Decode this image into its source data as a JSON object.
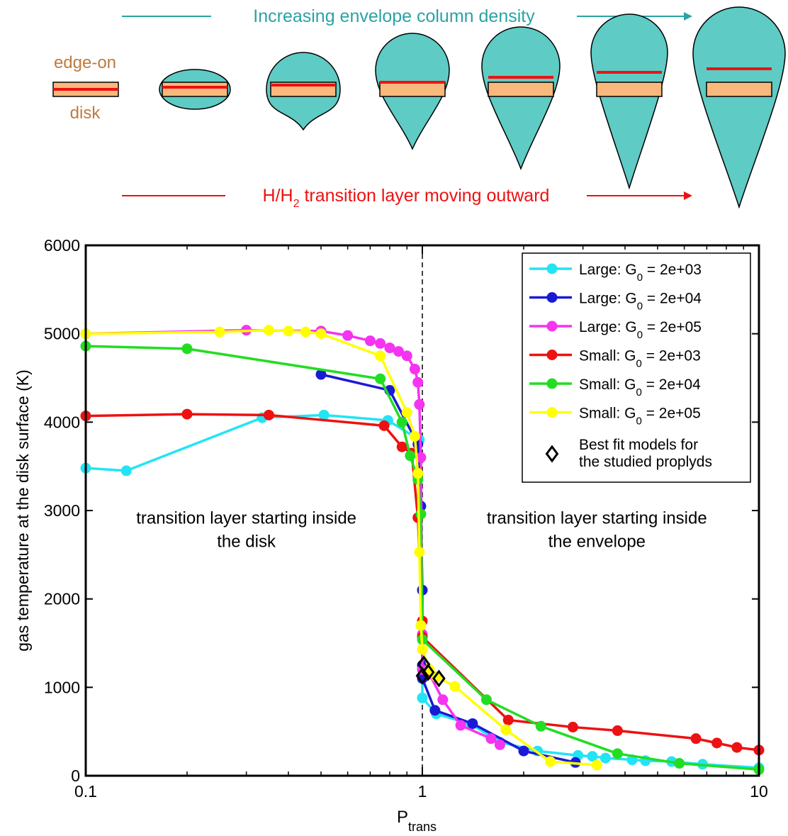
{
  "diagram": {
    "top_arrow_label": "Increasing envelope column density",
    "disk_label": [
      "edge-on",
      "disk"
    ],
    "bottom_arrow_label": [
      "H/H",
      "2",
      " transition layer moving  outward"
    ]
  },
  "chart_data": {
    "type": "line",
    "xlabel": [
      "P",
      "trans"
    ],
    "ylabel": "gas temperature at the disk surface (K)",
    "xscale": "log",
    "xlim": [
      0.1,
      10
    ],
    "xticks": [
      0.1,
      1,
      10
    ],
    "ylim": [
      0,
      6000
    ],
    "yticks": [
      0,
      1000,
      2000,
      3000,
      4000,
      5000,
      6000
    ],
    "vline": 1,
    "legend": "upper right",
    "annotations": [
      {
        "x": 0.3,
        "y": 2900,
        "lines": [
          "transition layer starting inside",
          "the disk"
        ]
      },
      {
        "x": 3.3,
        "y": 2900,
        "lines": [
          "transition layer starting inside",
          "the envelope"
        ]
      }
    ],
    "series": [
      {
        "name": [
          "Large: G",
          "0",
          " = 2e+03"
        ],
        "color": "#22e4f4",
        "marker": "circle",
        "x": [
          0.1,
          0.132,
          0.334,
          0.51,
          0.79,
          0.98,
          1.0,
          1.0,
          1.1,
          1.4,
          1.7,
          2.2,
          2.9,
          3.2,
          3.5,
          4.2,
          4.6,
          5.5,
          6.8,
          10
        ],
        "values": [
          3480,
          3450,
          4050,
          4080,
          4020,
          3800,
          1230,
          880,
          700,
          580,
          380,
          280,
          230,
          220,
          200,
          180,
          170,
          160,
          130,
          90
        ]
      },
      {
        "name": [
          "Large: G",
          "0",
          " = 2e+04"
        ],
        "color": "#1a1ad6",
        "marker": "circle",
        "x": [
          0.5,
          0.8,
          0.97,
          0.99,
          1.0,
          1.0,
          1.0,
          1.09,
          1.41,
          2.0,
          2.85
        ],
        "values": [
          4540,
          4360,
          3750,
          3050,
          2100,
          1250,
          1100,
          740,
          590,
          280,
          150
        ]
      },
      {
        "name": [
          "Large: G",
          "0",
          " = 2e+05"
        ],
        "color": "#f533f0",
        "marker": "circle",
        "x": [
          0.1,
          0.3,
          0.5,
          0.6,
          0.7,
          0.75,
          0.8,
          0.85,
          0.9,
          0.95,
          0.97,
          0.98,
          0.99,
          1.0,
          1.0,
          1.05,
          1.15,
          1.3,
          1.6,
          1.7
        ],
        "values": [
          5000,
          5040,
          5030,
          4980,
          4920,
          4890,
          4840,
          4800,
          4750,
          4600,
          4450,
          4200,
          3600,
          1600,
          1200,
          1150,
          860,
          570,
          420,
          350
        ]
      },
      {
        "name": [
          "Small: G",
          "0",
          " = 2e+03"
        ],
        "color": "#ee1111",
        "marker": "circle",
        "x": [
          0.1,
          0.2,
          0.35,
          0.77,
          0.87,
          0.93,
          0.97,
          1.0,
          1.0,
          1.8,
          2.8,
          3.8,
          6.5,
          7.5,
          8.6,
          10
        ],
        "values": [
          4070,
          4090,
          4080,
          3960,
          3720,
          3650,
          2920,
          1750,
          1570,
          630,
          550,
          510,
          420,
          370,
          320,
          290
        ]
      },
      {
        "name": [
          "Small: G",
          "0",
          " = 2e+04"
        ],
        "color": "#22dd22",
        "marker": "circle",
        "x": [
          0.1,
          0.2,
          0.75,
          0.87,
          0.92,
          0.97,
          0.99,
          1.0,
          1.55,
          2.25,
          3.8,
          5.8,
          10
        ],
        "values": [
          4860,
          4830,
          4490,
          4000,
          3620,
          3350,
          2960,
          1540,
          860,
          560,
          250,
          140,
          70
        ]
      },
      {
        "name": [
          "Small: G",
          "0",
          " = 2e+05"
        ],
        "color": "#ffff00",
        "marker": "circle",
        "x": [
          0.1,
          0.25,
          0.35,
          0.4,
          0.45,
          0.5,
          0.75,
          0.9,
          0.95,
          0.97,
          0.98,
          0.99,
          1.0,
          1.05,
          1.1,
          1.25,
          1.77,
          2.4,
          3.3
        ],
        "values": [
          5000,
          5020,
          5040,
          5030,
          5020,
          5000,
          4750,
          4110,
          3840,
          3420,
          2530,
          1700,
          1430,
          1200,
          1120,
          1010,
          520,
          160,
          120
        ]
      },
      {
        "name": [
          "Best fit models for",
          "the studied proplyds"
        ],
        "color": "#000000",
        "marker": "diamond",
        "x": [
          1.0,
          1.01,
          1.04,
          1.12
        ],
        "values": [
          1130,
          1260,
          1170,
          1100
        ]
      }
    ]
  }
}
